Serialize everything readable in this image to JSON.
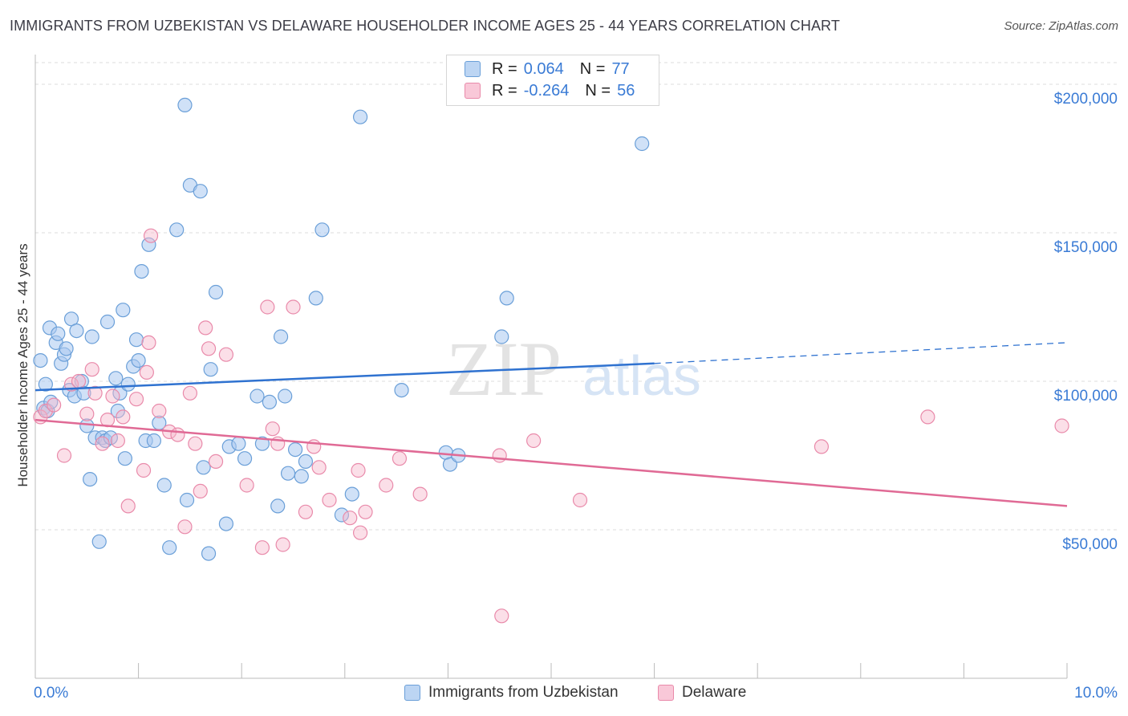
{
  "title": "IMMIGRANTS FROM UZBEKISTAN VS DELAWARE HOUSEHOLDER INCOME AGES 25 - 44 YEARS CORRELATION CHART",
  "source": "Source: ZipAtlas.com",
  "watermark": {
    "zip": "ZIP",
    "atlas": "atlas"
  },
  "colors": {
    "blue_fill": "#a9c8f0",
    "blue_stroke": "#6a9fd8",
    "blue_line": "#2f72d0",
    "pink_fill": "#f7b9cd",
    "pink_stroke": "#e98aaa",
    "pink_line": "#e06a95",
    "axis_label": "#3a7bd5",
    "grid": "#dcdcdc"
  },
  "legend": {
    "rows": [
      {
        "r_label": "R =",
        "r_value": "0.064",
        "n_label": "N =",
        "n_value": "77"
      },
      {
        "r_label": "R =",
        "r_value": "-0.264",
        "n_label": "N =",
        "n_value": "56"
      }
    ]
  },
  "chart_data": {
    "type": "scatter",
    "title": "IMMIGRANTS FROM UZBEKISTAN VS DELAWARE HOUSEHOLDER INCOME AGES 25 - 44 YEARS CORRELATION CHART",
    "xlabel": "",
    "ylabel": "Householder Income Ages 25 - 44 years",
    "xlim": [
      0,
      10
    ],
    "ylim": [
      0,
      210000
    ],
    "x_tick_labels": [
      "0.0%",
      "10.0%"
    ],
    "y_ticks": [
      50000,
      100000,
      150000,
      200000
    ],
    "y_tick_labels": [
      "$50,000",
      "$100,000",
      "$150,000",
      "$200,000"
    ],
    "grid": true,
    "legend_placement": "top-center",
    "series": [
      {
        "name": "Immigrants from Uzbekistan",
        "r": 0.064,
        "n": 77,
        "trend": {
          "x0": 0,
          "y0": 97000,
          "x1": 6,
          "y1": 106000,
          "dashed_to_x": 10,
          "dashed_to_y": 113000
        },
        "points": [
          [
            0.05,
            107000
          ],
          [
            0.08,
            91000
          ],
          [
            0.1,
            99000
          ],
          [
            0.12,
            90000
          ],
          [
            0.14,
            118000
          ],
          [
            0.15,
            93000
          ],
          [
            0.2,
            113000
          ],
          [
            0.22,
            116000
          ],
          [
            0.25,
            106000
          ],
          [
            0.28,
            109000
          ],
          [
            0.3,
            111000
          ],
          [
            0.33,
            97000
          ],
          [
            0.35,
            121000
          ],
          [
            0.38,
            95000
          ],
          [
            0.4,
            117000
          ],
          [
            0.45,
            100000
          ],
          [
            0.47,
            96000
          ],
          [
            0.5,
            85000
          ],
          [
            0.53,
            67000
          ],
          [
            0.55,
            115000
          ],
          [
            0.58,
            81000
          ],
          [
            0.62,
            46000
          ],
          [
            0.65,
            81000
          ],
          [
            0.68,
            80000
          ],
          [
            0.7,
            120000
          ],
          [
            0.73,
            81000
          ],
          [
            0.78,
            101000
          ],
          [
            0.8,
            90000
          ],
          [
            0.82,
            96000
          ],
          [
            0.85,
            124000
          ],
          [
            0.87,
            74000
          ],
          [
            0.9,
            99000
          ],
          [
            0.95,
            105000
          ],
          [
            0.98,
            114000
          ],
          [
            1.0,
            107000
          ],
          [
            1.03,
            137000
          ],
          [
            1.07,
            80000
          ],
          [
            1.1,
            146000
          ],
          [
            1.15,
            80000
          ],
          [
            1.2,
            86000
          ],
          [
            1.25,
            65000
          ],
          [
            1.3,
            44000
          ],
          [
            1.37,
            151000
          ],
          [
            1.45,
            193000
          ],
          [
            1.47,
            60000
          ],
          [
            1.5,
            166000
          ],
          [
            1.6,
            164000
          ],
          [
            1.63,
            71000
          ],
          [
            1.68,
            42000
          ],
          [
            1.7,
            104000
          ],
          [
            1.75,
            130000
          ],
          [
            1.85,
            52000
          ],
          [
            1.88,
            78000
          ],
          [
            1.97,
            79000
          ],
          [
            2.03,
            74000
          ],
          [
            2.15,
            95000
          ],
          [
            2.2,
            79000
          ],
          [
            2.27,
            93000
          ],
          [
            2.35,
            58000
          ],
          [
            2.38,
            115000
          ],
          [
            2.42,
            95000
          ],
          [
            2.45,
            69000
          ],
          [
            2.52,
            77000
          ],
          [
            2.58,
            68000
          ],
          [
            2.62,
            73000
          ],
          [
            2.72,
            128000
          ],
          [
            2.78,
            151000
          ],
          [
            2.97,
            55000
          ],
          [
            3.07,
            62000
          ],
          [
            3.15,
            189000
          ],
          [
            3.55,
            97000
          ],
          [
            3.98,
            76000
          ],
          [
            4.02,
            72000
          ],
          [
            4.1,
            75000
          ],
          [
            4.52,
            115000
          ],
          [
            4.57,
            128000
          ],
          [
            5.88,
            180000
          ]
        ]
      },
      {
        "name": "Delaware",
        "r": -0.264,
        "n": 56,
        "trend": {
          "x0": 0,
          "y0": 87000,
          "x1": 10,
          "y1": 58000
        },
        "points": [
          [
            0.05,
            88000
          ],
          [
            0.1,
            90000
          ],
          [
            0.18,
            92000
          ],
          [
            0.28,
            75000
          ],
          [
            0.35,
            99000
          ],
          [
            0.42,
            100000
          ],
          [
            0.5,
            89000
          ],
          [
            0.55,
            104000
          ],
          [
            0.58,
            96000
          ],
          [
            0.65,
            79000
          ],
          [
            0.7,
            87000
          ],
          [
            0.75,
            95000
          ],
          [
            0.8,
            80000
          ],
          [
            0.85,
            88000
          ],
          [
            0.9,
            58000
          ],
          [
            0.98,
            94000
          ],
          [
            1.05,
            70000
          ],
          [
            1.08,
            103000
          ],
          [
            1.1,
            113000
          ],
          [
            1.12,
            149000
          ],
          [
            1.2,
            90000
          ],
          [
            1.3,
            83000
          ],
          [
            1.38,
            82000
          ],
          [
            1.45,
            51000
          ],
          [
            1.5,
            96000
          ],
          [
            1.55,
            79000
          ],
          [
            1.6,
            63000
          ],
          [
            1.65,
            118000
          ],
          [
            1.68,
            111000
          ],
          [
            1.75,
            73000
          ],
          [
            1.85,
            109000
          ],
          [
            2.05,
            65000
          ],
          [
            2.2,
            44000
          ],
          [
            2.25,
            125000
          ],
          [
            2.3,
            84000
          ],
          [
            2.35,
            79000
          ],
          [
            2.4,
            45000
          ],
          [
            2.5,
            125000
          ],
          [
            2.62,
            56000
          ],
          [
            2.7,
            78000
          ],
          [
            2.75,
            71000
          ],
          [
            2.85,
            60000
          ],
          [
            3.05,
            54000
          ],
          [
            3.13,
            70000
          ],
          [
            3.15,
            49000
          ],
          [
            3.2,
            56000
          ],
          [
            3.4,
            65000
          ],
          [
            3.53,
            74000
          ],
          [
            3.73,
            62000
          ],
          [
            4.5,
            75000
          ],
          [
            4.52,
            21000
          ],
          [
            4.83,
            80000
          ],
          [
            5.28,
            60000
          ],
          [
            7.62,
            78000
          ],
          [
            8.65,
            88000
          ],
          [
            9.95,
            85000
          ]
        ]
      }
    ]
  },
  "bottom_legend": [
    "Immigrants from Uzbekistan",
    "Delaware"
  ]
}
